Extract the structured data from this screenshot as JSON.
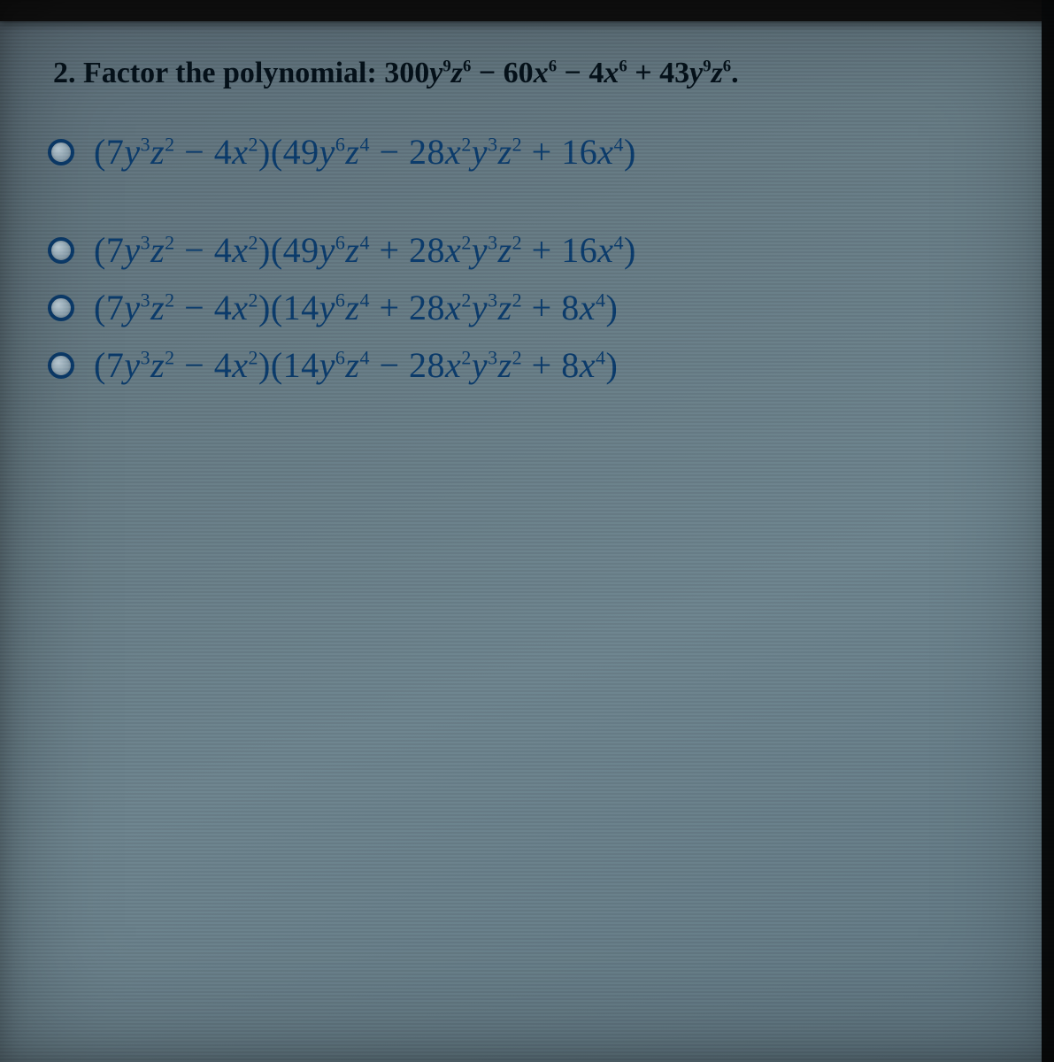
{
  "question": {
    "number": "2.",
    "stem": "Factor the polynomial:",
    "polynomial_html": "300<i>y</i><sup>9</sup><i>z</i><sup>6</sup> − 60<i>x</i><sup>6</sup> − 4<i>x</i><sup>6</sup> + 43<i>y</i><sup>9</sup><i>z</i><sup>6</sup>.",
    "text_color": "#05111a",
    "fontsize": 34
  },
  "options": [
    {
      "html": "(7<i>y</i><sup>3</sup><i>z</i><sup>2</sup> − 4<i>x</i><sup>2</sup>)(49<i>y</i><sup>6</sup><i>z</i><sup>4</sup> − 28<i>x</i><sup>2</sup><i>y</i><sup>3</sup><i>z</i><sup>2</sup> + 16<i>x</i><sup>4</sup>)"
    },
    {
      "html": "(7<i>y</i><sup>3</sup><i>z</i><sup>2</sup> − 4<i>x</i><sup>2</sup>)(49<i>y</i><sup>6</sup><i>z</i><sup>4</sup> + 28<i>x</i><sup>2</sup><i>y</i><sup>3</sup><i>z</i><sup>2</sup> + 16<i>x</i><sup>4</sup>)"
    },
    {
      "html": "(7<i>y</i><sup>3</sup><i>z</i><sup>2</sup> − 4<i>x</i><sup>2</sup>)(14<i>y</i><sup>6</sup><i>z</i><sup>4</sup> + 28<i>x</i><sup>2</sup><i>y</i><sup>3</sup><i>z</i><sup>2</sup> + 8<i>x</i><sup>4</sup>)"
    },
    {
      "html": "(7<i>y</i><sup>3</sup><i>z</i><sup>2</sup> − 4<i>x</i><sup>2</sup>)(14<i>y</i><sup>6</sup><i>z</i><sup>4</sup> − 28<i>x</i><sup>2</sup><i>y</i><sup>3</sup><i>z</i><sup>2</sup> + 8<i>x</i><sup>4</sup>)"
    }
  ],
  "option_style": {
    "text_color": "#0b3b6b",
    "radio_border_color": "#0b3b6b",
    "fontsize": 40
  },
  "background": {
    "gradient_from": "#5c6d78",
    "gradient_to": "#607681"
  }
}
